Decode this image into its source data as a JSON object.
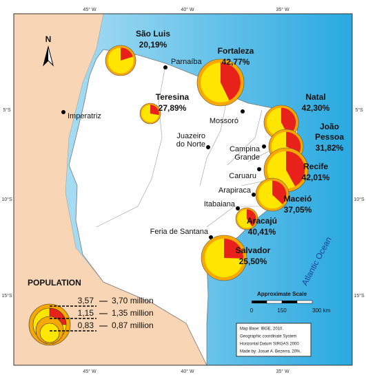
{
  "grid_labels": {
    "top": [
      "45° W",
      "40° W",
      "35° W"
    ],
    "bottom": [
      "45° W",
      "40° W",
      "35° W"
    ],
    "left": [
      "5°S",
      "10°S",
      "15°S"
    ],
    "right": [
      "5°S",
      "10°S",
      "15°S"
    ]
  },
  "north": "N",
  "capitals": [
    {
      "name_lines": [
        "São Luis"
      ],
      "share": 20.19,
      "share_label": "20,19%"
    },
    {
      "name_lines": [
        "Fortaleza"
      ],
      "share": 42.77,
      "share_label": "42,77%"
    },
    {
      "name_lines": [
        "Teresina"
      ],
      "share": 27.89,
      "share_label": "27,89%"
    },
    {
      "name_lines": [
        "Natal"
      ],
      "share": 42.3,
      "share_label": "42,30%"
    },
    {
      "name_lines": [
        "João",
        "Pessoa"
      ],
      "share": 31.82,
      "share_label": "31,82%"
    },
    {
      "name_lines": [
        "Recife"
      ],
      "share": 42.01,
      "share_label": "42,01%"
    },
    {
      "name_lines": [
        "Maceió"
      ],
      "share": 37.05,
      "share_label": "37,05%"
    },
    {
      "name_lines": [
        "Aracajú"
      ],
      "share": 40.41,
      "share_label": "40,41%"
    },
    {
      "name_lines": [
        "Salvador"
      ],
      "share": 25.5,
      "share_label": "25,50%"
    }
  ],
  "cities": [
    {
      "name_lines": [
        "Parnaíba"
      ]
    },
    {
      "name_lines": [
        "Imperatriz"
      ]
    },
    {
      "name_lines": [
        "Mossoró"
      ]
    },
    {
      "name_lines": [
        "Juazeiro",
        "do Norte"
      ]
    },
    {
      "name_lines": [
        "Campina",
        "Grande"
      ]
    },
    {
      "name_lines": [
        "Caruaru"
      ]
    },
    {
      "name_lines": [
        "Arapiraca"
      ]
    },
    {
      "name_lines": [
        "Itabaiana"
      ]
    },
    {
      "name_lines": [
        "Feria de Santana"
      ]
    }
  ],
  "ocean": "Atlantic Ocean",
  "legend": {
    "title": "POPULATION",
    "rows": [
      {
        "ratio": "3,57",
        "population": "3,70 million"
      },
      {
        "ratio": "1,15",
        "population": "1,35 million"
      },
      {
        "ratio": "0,83",
        "population": "0,87 million"
      }
    ]
  },
  "scale": {
    "title": "Approximate Scale",
    "ticks": [
      "0",
      "150",
      "300 km"
    ]
  },
  "credits": [
    "Map Base: IBGE, 2010.",
    "Geographic coordinate System",
    "Horizontal Datum SIRGAS 2000",
    "Made by: Josué A. Bezerra, 20%."
  ]
}
